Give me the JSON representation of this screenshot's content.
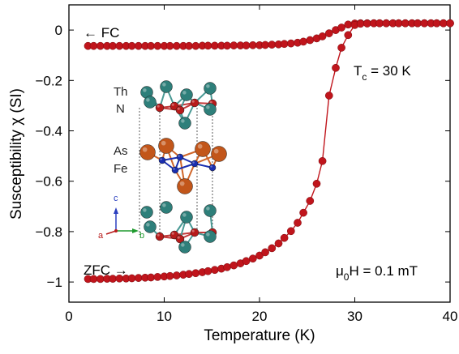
{
  "chart_data": {
    "type": "scatter",
    "xlabel": "Temperature (K)",
    "ylabel": "Susceptibility χ (SI)",
    "xlim": [
      0,
      40
    ],
    "ylim": [
      -1.08,
      0.1
    ],
    "xticks": [
      0,
      10,
      20,
      30,
      40
    ],
    "yticks": [
      0,
      -0.2,
      -0.4,
      -0.6,
      -0.8,
      -1
    ],
    "ytick_labels": [
      "0",
      "−0.2",
      "−0.4",
      "−0.6",
      "−0.8",
      "−1"
    ],
    "grid": false,
    "series": [
      {
        "label": "← FC",
        "color": "#c0151c",
        "points": [
          [
            2.0,
            -0.063
          ],
          [
            2.6,
            -0.063
          ],
          [
            3.3,
            -0.063
          ],
          [
            4.0,
            -0.063
          ],
          [
            4.6,
            -0.063
          ],
          [
            5.3,
            -0.063
          ],
          [
            6.0,
            -0.063
          ],
          [
            6.6,
            -0.063
          ],
          [
            7.3,
            -0.063
          ],
          [
            8.0,
            -0.063
          ],
          [
            8.6,
            -0.063
          ],
          [
            9.3,
            -0.063
          ],
          [
            10.0,
            -0.063
          ],
          [
            10.6,
            -0.063
          ],
          [
            11.3,
            -0.063
          ],
          [
            12.0,
            -0.063
          ],
          [
            12.6,
            -0.063
          ],
          [
            13.3,
            -0.063
          ],
          [
            14.0,
            -0.062
          ],
          [
            14.6,
            -0.062
          ],
          [
            15.3,
            -0.062
          ],
          [
            16.0,
            -0.062
          ],
          [
            16.6,
            -0.062
          ],
          [
            17.3,
            -0.061
          ],
          [
            18.0,
            -0.061
          ],
          [
            18.6,
            -0.061
          ],
          [
            19.3,
            -0.06
          ],
          [
            20.0,
            -0.06
          ],
          [
            20.6,
            -0.059
          ],
          [
            21.3,
            -0.058
          ],
          [
            22.0,
            -0.057
          ],
          [
            22.6,
            -0.055
          ],
          [
            23.3,
            -0.053
          ],
          [
            24.0,
            -0.05
          ],
          [
            24.6,
            -0.046
          ],
          [
            25.3,
            -0.04
          ],
          [
            26.0,
            -0.033
          ],
          [
            26.6,
            -0.025
          ],
          [
            27.3,
            -0.013
          ],
          [
            28.0,
            0.0
          ],
          [
            28.6,
            0.01
          ],
          [
            29.3,
            0.022
          ],
          [
            30.0,
            0.026
          ],
          [
            30.6,
            0.027
          ],
          [
            31.3,
            0.027
          ],
          [
            32.0,
            0.027
          ],
          [
            32.6,
            0.027
          ],
          [
            33.3,
            0.027
          ],
          [
            34.0,
            0.027
          ],
          [
            34.6,
            0.027
          ],
          [
            35.3,
            0.027
          ],
          [
            36.0,
            0.027
          ],
          [
            36.6,
            0.027
          ],
          [
            37.3,
            0.027
          ],
          [
            38.0,
            0.027
          ],
          [
            38.6,
            0.027
          ],
          [
            39.3,
            0.027
          ],
          [
            40.0,
            0.027
          ]
        ]
      },
      {
        "label": "ZFC →",
        "color": "#c0151c",
        "points": [
          [
            2.0,
            -0.988
          ],
          [
            2.6,
            -0.988
          ],
          [
            3.3,
            -0.988
          ],
          [
            4.0,
            -0.987
          ],
          [
            4.6,
            -0.987
          ],
          [
            5.3,
            -0.986
          ],
          [
            6.0,
            -0.986
          ],
          [
            6.6,
            -0.985
          ],
          [
            7.3,
            -0.984
          ],
          [
            8.0,
            -0.983
          ],
          [
            8.6,
            -0.982
          ],
          [
            9.3,
            -0.98
          ],
          [
            10.0,
            -0.978
          ],
          [
            10.6,
            -0.976
          ],
          [
            11.3,
            -0.974
          ],
          [
            12.0,
            -0.971
          ],
          [
            12.6,
            -0.968
          ],
          [
            13.3,
            -0.965
          ],
          [
            14.0,
            -0.961
          ],
          [
            14.6,
            -0.957
          ],
          [
            15.3,
            -0.952
          ],
          [
            16.0,
            -0.947
          ],
          [
            16.6,
            -0.941
          ],
          [
            17.3,
            -0.934
          ],
          [
            18.0,
            -0.926
          ],
          [
            18.6,
            -0.917
          ],
          [
            19.3,
            -0.907
          ],
          [
            20.0,
            -0.895
          ],
          [
            20.6,
            -0.882
          ],
          [
            21.3,
            -0.866
          ],
          [
            22.0,
            -0.847
          ],
          [
            22.6,
            -0.825
          ],
          [
            23.3,
            -0.798
          ],
          [
            24.0,
            -0.765
          ],
          [
            24.6,
            -0.725
          ],
          [
            25.3,
            -0.678
          ],
          [
            26.0,
            -0.61
          ],
          [
            26.6,
            -0.52
          ],
          [
            27.3,
            -0.26
          ],
          [
            28.0,
            -0.15
          ],
          [
            28.6,
            -0.07
          ],
          [
            29.3,
            -0.02
          ],
          [
            30.0,
            0.02
          ],
          [
            30.6,
            0.025
          ],
          [
            31.3,
            0.026
          ],
          [
            32.0,
            0.027
          ],
          [
            32.6,
            0.027
          ],
          [
            33.3,
            0.027
          ],
          [
            34.0,
            0.027
          ],
          [
            34.6,
            0.027
          ],
          [
            35.3,
            0.027
          ],
          [
            36.0,
            0.027
          ],
          [
            36.6,
            0.027
          ],
          [
            37.3,
            0.027
          ],
          [
            38.0,
            0.027
          ],
          [
            38.6,
            0.027
          ],
          [
            39.3,
            0.027
          ],
          [
            40.0,
            0.027
          ]
        ]
      }
    ],
    "annotations": {
      "fc": "← FC",
      "zfc": "ZFC →",
      "tc_T": "T",
      "tc_sub": "c",
      "tc_rest": " = 30 K",
      "mu": "μ",
      "mu_sub": "0",
      "mu_rest": "H = 0.1 mT"
    },
    "inset": {
      "labels": [
        "Th",
        "N",
        "As",
        "Fe"
      ],
      "axes": [
        "c",
        "a",
        "b"
      ],
      "colors": {
        "th": "#2e7f7a",
        "n": "#b81b1b",
        "as": "#c2561a",
        "fe": "#1a2eb0",
        "bond_n": "#c23a3a",
        "bond_fe": "#d0662a",
        "bond_th": "#4a9a95"
      }
    }
  }
}
